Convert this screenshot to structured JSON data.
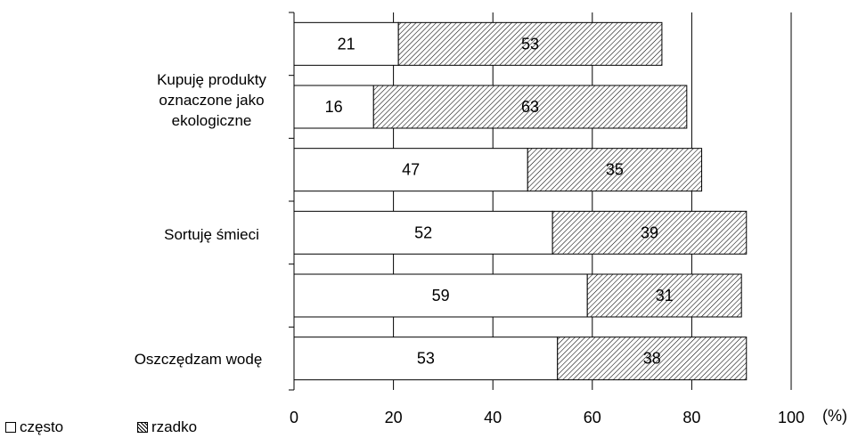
{
  "chart_data": {
    "type": "bar",
    "orientation": "horizontal",
    "stacked": true,
    "categories": [
      "",
      "",
      "",
      "",
      "",
      ""
    ],
    "group_labels": [
      "Kupuję produkty\noznaczone jako\nekologiczne",
      "Sortuję śmieci",
      "Oszczędzam wodę"
    ],
    "series": [
      {
        "name": "często",
        "values": [
          21,
          16,
          47,
          52,
          59,
          53
        ]
      },
      {
        "name": "rzadko",
        "values": [
          53,
          63,
          35,
          39,
          31,
          38
        ]
      }
    ],
    "xlim": [
      0,
      100
    ],
    "xticks": [
      "0",
      "20",
      "40",
      "60",
      "80",
      "100"
    ],
    "unit_label": "(%)",
    "grid": true,
    "legend_position": "bottom-left"
  },
  "colors": {
    "czesto": "#ffffff",
    "rzadko_hatch": "#000000",
    "axis": "#000000"
  }
}
